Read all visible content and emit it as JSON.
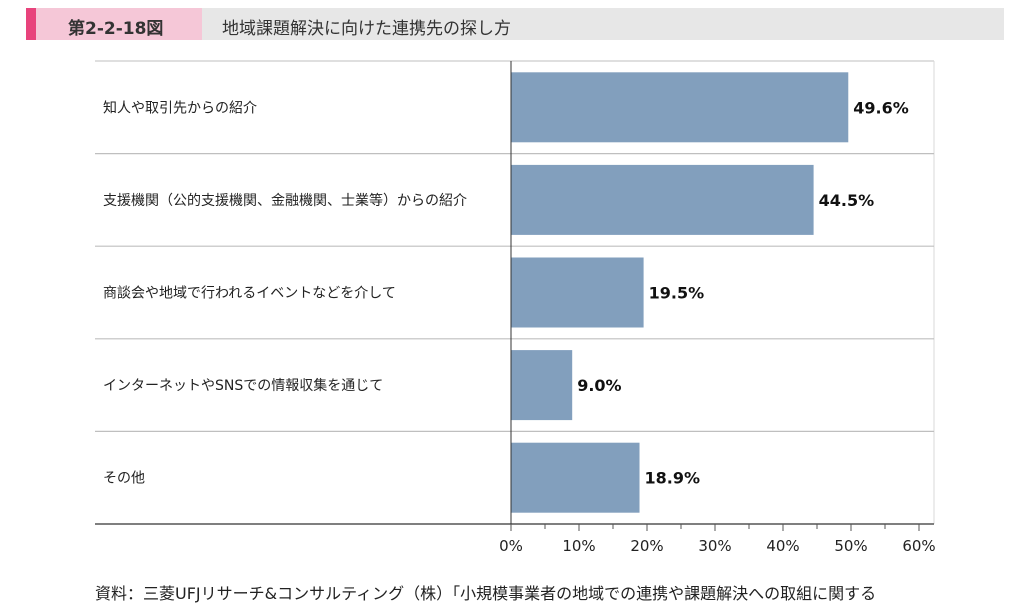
{
  "header": {
    "figure_number": "第2-2-18図",
    "title": "地域課題解決に向けた連携先の探し方"
  },
  "source_note": "資料：三菱UFJリサーチ&コンサルティング（株）「小規模事業者の地域での連携や課題解決への取組に関する",
  "colors": {
    "bar": "#829fbd",
    "accent": "#e8437c",
    "header_bg": "#e7e7e7",
    "label_bg": "#f5c7d7"
  },
  "chart_data": {
    "type": "bar",
    "orientation": "horizontal",
    "categories": [
      "知人や取引先からの紹介",
      "支援機関（公的支援機関、金融機関、士業等）からの紹介",
      "商談会や地域で行われるイベントなどを介して",
      "インターネットやSNSでの情報収集を通じて",
      "その他"
    ],
    "values": [
      49.6,
      44.5,
      19.5,
      9.0,
      18.9
    ],
    "value_labels": [
      "49.6%",
      "44.5%",
      "19.5%",
      "9.0%",
      "18.9%"
    ],
    "xlim": [
      0,
      60
    ],
    "xticks": [
      0,
      10,
      20,
      30,
      40,
      50,
      60
    ],
    "xtick_labels": [
      "0%",
      "10%",
      "20%",
      "30%",
      "40%",
      "50%",
      "60%"
    ],
    "grid": false
  }
}
